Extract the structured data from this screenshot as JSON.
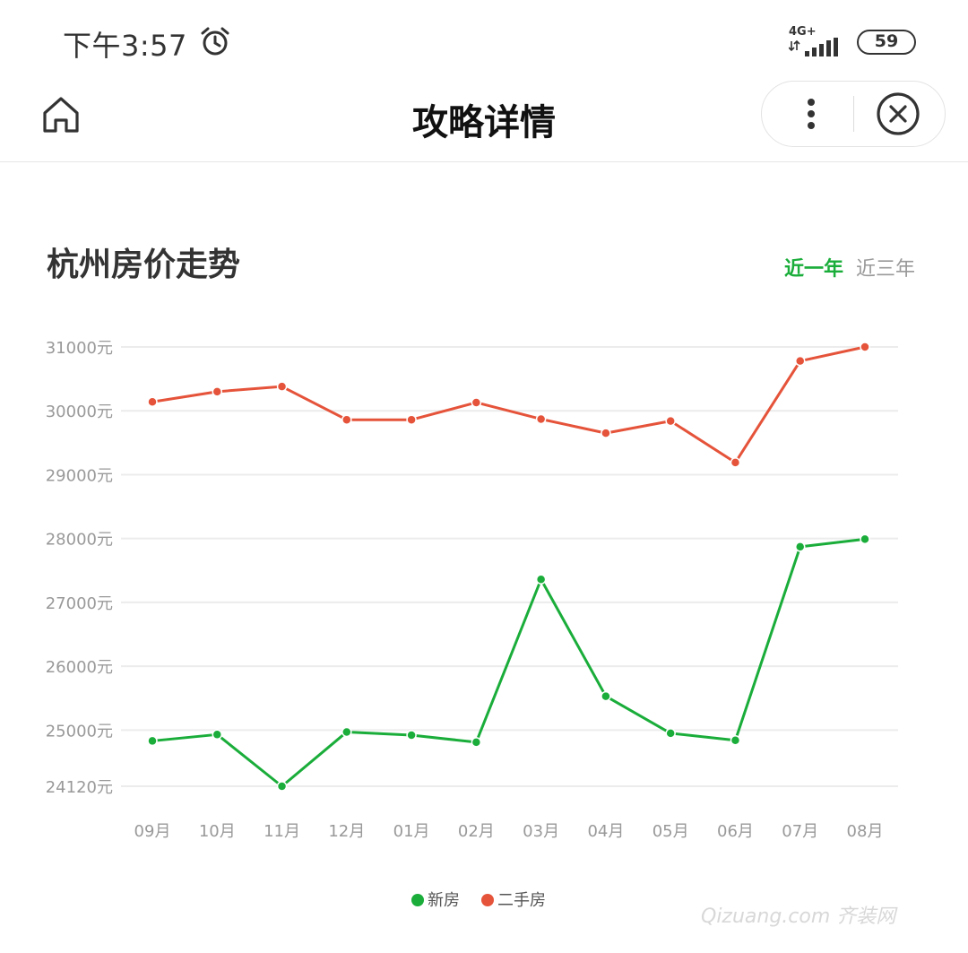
{
  "status_bar": {
    "time": "下午3:57",
    "network": "4G+",
    "battery": "59"
  },
  "nav": {
    "title": "攻略详情"
  },
  "section": {
    "title": "杭州房价走势",
    "tabs": [
      {
        "label": "近一年",
        "active": true
      },
      {
        "label": "近三年",
        "active": false
      }
    ]
  },
  "colors": {
    "accent": "#1aad3a",
    "new_house": "#1aad3a",
    "resale_house": "#e5533a"
  },
  "watermark": "Qizuang.com 齐装网",
  "chart_data": {
    "type": "line",
    "categories": [
      "09月",
      "10月",
      "11月",
      "12月",
      "01月",
      "02月",
      "03月",
      "04月",
      "05月",
      "06月",
      "07月",
      "08月"
    ],
    "y_ticks": [
      "31000元",
      "30000元",
      "29000元",
      "28000元",
      "27000元",
      "26000元",
      "25000元",
      "24120元"
    ],
    "y_tick_values": [
      31000,
      30000,
      29000,
      28000,
      27000,
      26000,
      25000,
      24120
    ],
    "ylim": [
      24120,
      31000
    ],
    "grid": true,
    "legend_position": "bottom",
    "series": [
      {
        "name": "新房",
        "color": "#1aad3a",
        "values": [
          24830,
          24930,
          24120,
          24970,
          24920,
          24810,
          27360,
          25530,
          24950,
          24840,
          27870,
          27990
        ]
      },
      {
        "name": "二手房",
        "color": "#e5533a",
        "values": [
          30140,
          30300,
          30380,
          29860,
          29860,
          30130,
          29870,
          29650,
          29840,
          29190,
          30780,
          31000
        ]
      }
    ]
  }
}
